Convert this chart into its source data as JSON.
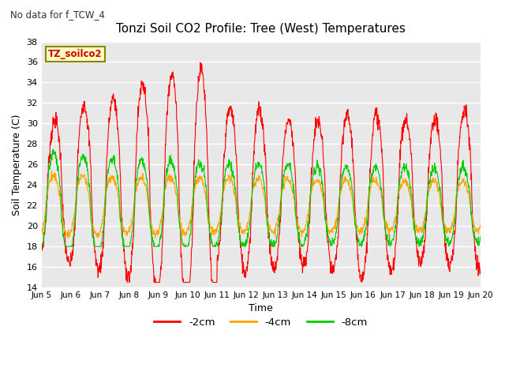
{
  "title": "Tonzi Soil CO2 Profile: Tree (West) Temperatures",
  "subtitle": "No data for f_TCW_4",
  "xlabel": "Time",
  "ylabel": "Soil Temperature (C)",
  "ylim": [
    14,
    38
  ],
  "yticks": [
    14,
    16,
    18,
    20,
    22,
    24,
    26,
    28,
    30,
    32,
    34,
    36,
    38
  ],
  "xtick_labels": [
    "Jun 5",
    "Jun 6",
    "Jun 7",
    "Jun 8",
    "Jun 9",
    "Jun 10",
    "Jun 11",
    "Jun 12",
    "Jun 13",
    "Jun 14",
    "Jun 15",
    "Jun 16",
    "Jun 17",
    "Jun 18",
    "Jun 19",
    "Jun 20"
  ],
  "legend_label": "TZ_soilco2",
  "line_labels": [
    "-2cm",
    "-4cm",
    "-8cm"
  ],
  "line_colors": [
    "#ff0000",
    "#ffa500",
    "#00cc00"
  ],
  "bg_color": "#e8e8e8",
  "fig_color": "#ffffff",
  "figsize": [
    6.4,
    4.8
  ],
  "dpi": 100
}
